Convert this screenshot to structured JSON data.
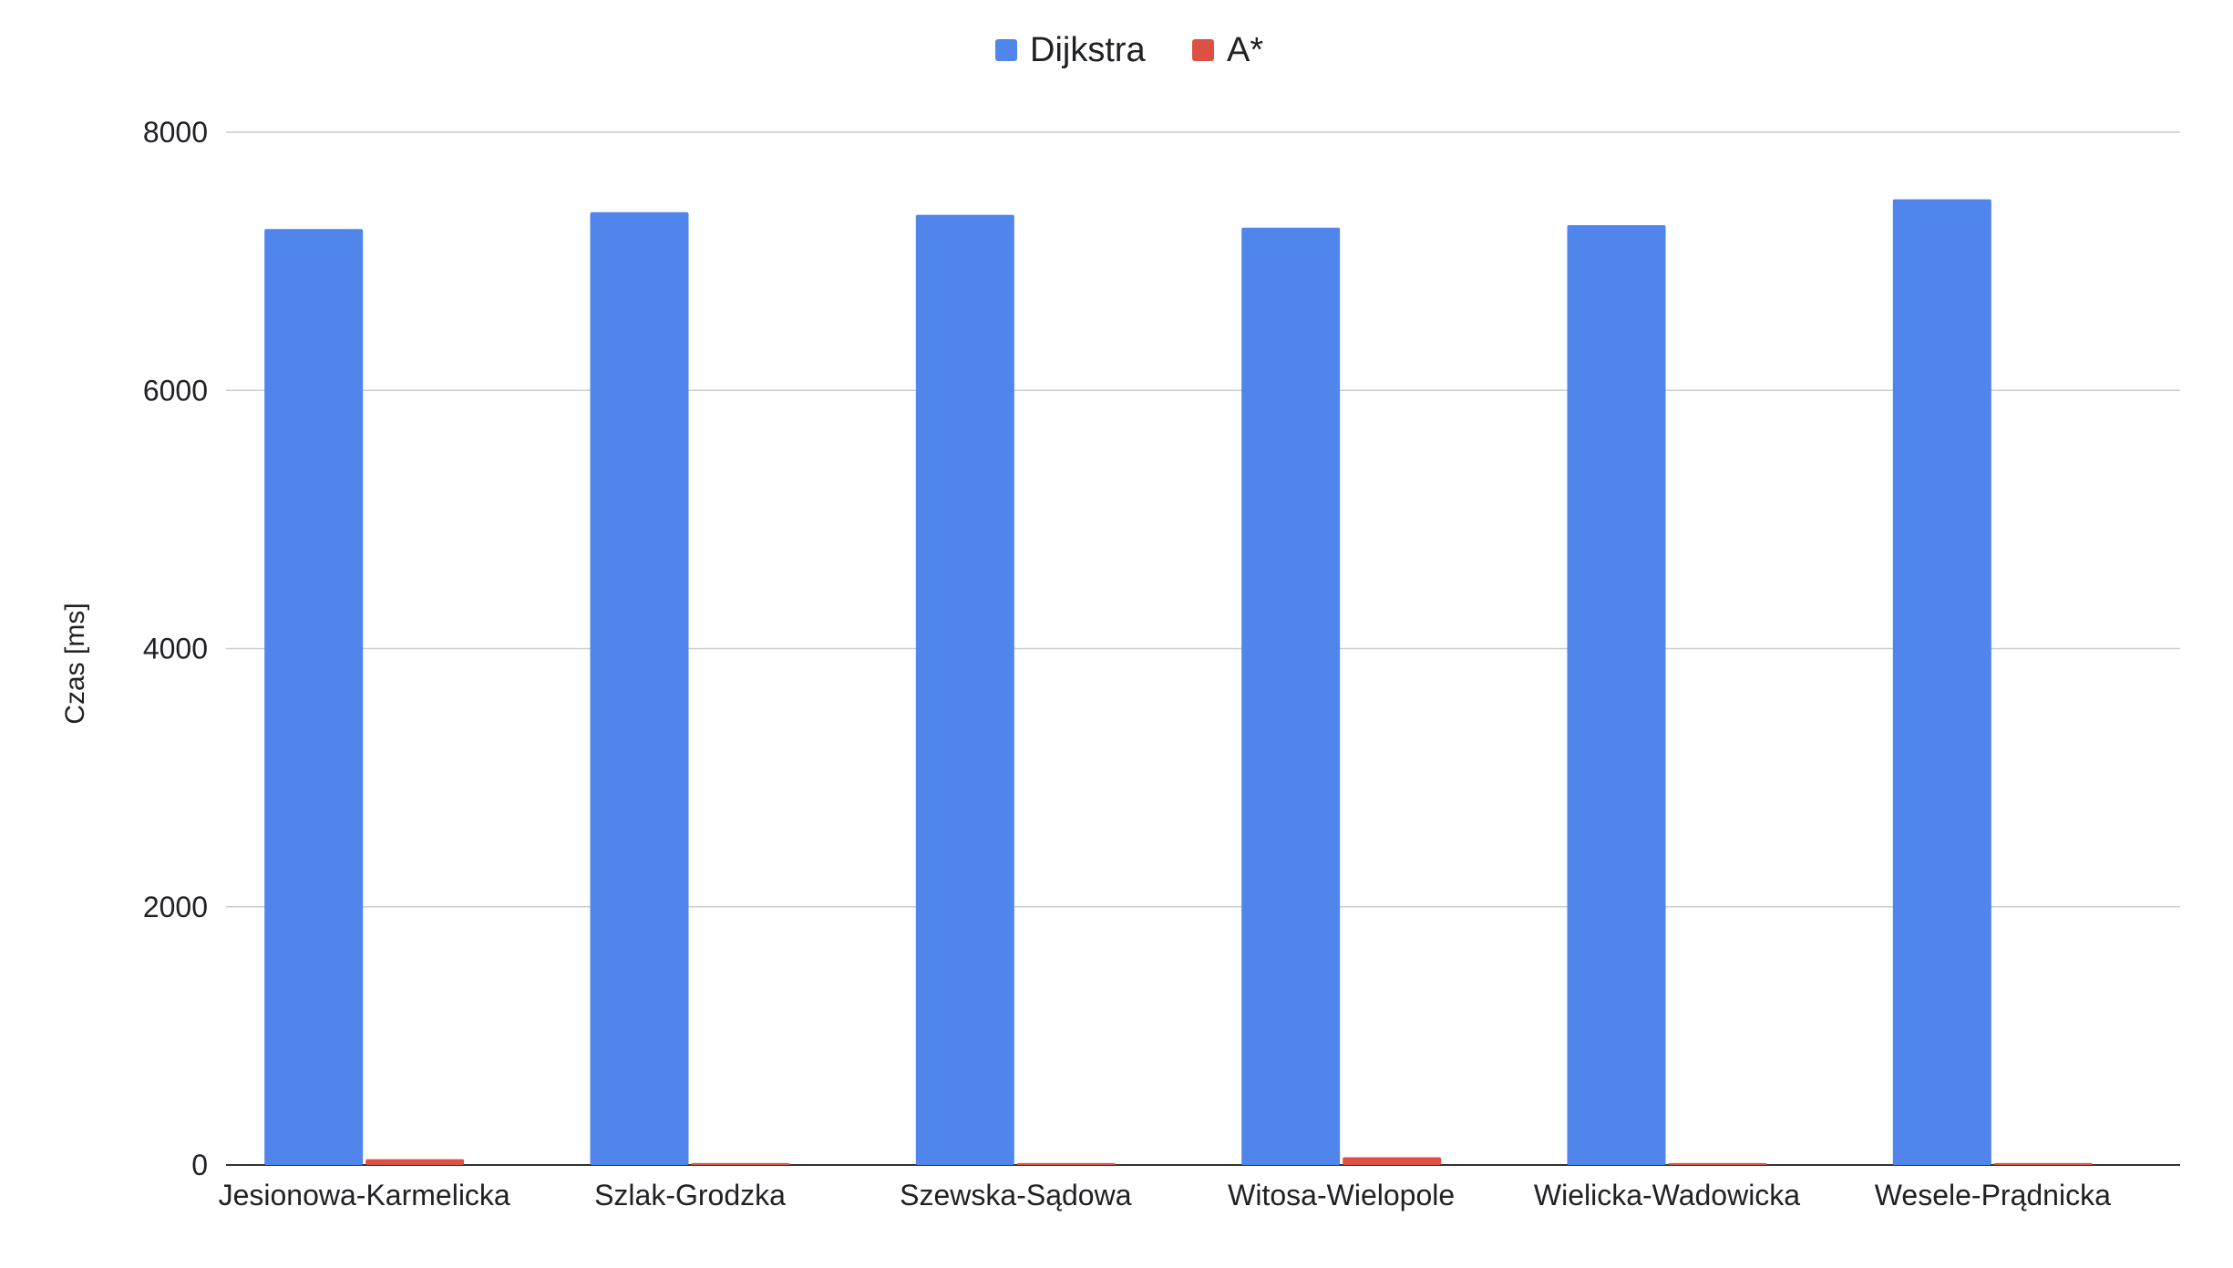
{
  "chart_data": {
    "type": "bar",
    "title": "",
    "xlabel": "",
    "ylabel": "Czas [ms]",
    "ylim": [
      0,
      8000
    ],
    "yticks": [
      0,
      2000,
      4000,
      6000,
      8000
    ],
    "grid": true,
    "legend_position": "top-center",
    "categories": [
      "Jesionowa-Karmelicka",
      "Szlak-Grodzka",
      "Szewska-Sądowa",
      "Witosa-Wielopole",
      "Wielicka-Wadowicka",
      "Wesele-Prądnicka"
    ],
    "series": [
      {
        "name": "Dijkstra",
        "color": "#5086EC",
        "values": [
          7250,
          7380,
          7360,
          7260,
          7280,
          7480
        ]
      },
      {
        "name": "A*",
        "color": "#DD5145",
        "values": [
          45,
          15,
          15,
          60,
          15,
          15
        ]
      }
    ]
  }
}
